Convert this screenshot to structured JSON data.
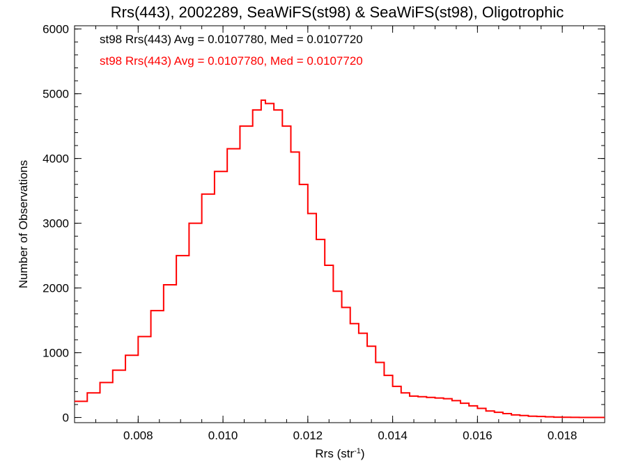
{
  "chart_data": {
    "type": "line",
    "title": "Rrs(443), 2002289, SeaWiFS(st98) & SeaWiFS(st98), Oligotrophic",
    "xlabel": "Rrs (str",
    "xlabel_sup": "-1",
    "xlabel_suffix": ")",
    "ylabel": "Number of Observations",
    "xlim": [
      0.0065,
      0.019
    ],
    "ylim": [
      -80,
      6050
    ],
    "xticks": [
      0.008,
      0.01,
      0.012,
      0.014,
      0.016,
      0.018
    ],
    "xtick_labels": [
      "0.008",
      "0.010",
      "0.012",
      "0.014",
      "0.016",
      "0.018"
    ],
    "yticks": [
      0,
      1000,
      2000,
      3000,
      4000,
      5000,
      6000
    ],
    "ytick_labels": [
      "0",
      "1000",
      "2000",
      "3000",
      "4000",
      "5000",
      "6000"
    ],
    "annotations": [
      {
        "text": "st98 Rrs(443) Avg = 0.0107780, Med = 0.0107720",
        "color": "#000000"
      },
      {
        "text": "st98 Rrs(443) Avg = 0.0107780, Med = 0.0107720",
        "color": "#ff0000"
      }
    ],
    "series": [
      {
        "color": "#ff0000",
        "x": [
          0.0065,
          0.0068,
          0.0071,
          0.0074,
          0.0077,
          0.008,
          0.0083,
          0.0086,
          0.0089,
          0.0092,
          0.0095,
          0.0098,
          0.0101,
          0.0104,
          0.0107,
          0.0109,
          0.011,
          0.0112,
          0.0114,
          0.0116,
          0.0118,
          0.012,
          0.0122,
          0.0124,
          0.0126,
          0.0128,
          0.013,
          0.0132,
          0.0134,
          0.0136,
          0.0138,
          0.014,
          0.0142,
          0.0144,
          0.0146,
          0.0148,
          0.015,
          0.0152,
          0.0154,
          0.0156,
          0.0158,
          0.016,
          0.0162,
          0.0164,
          0.0166,
          0.0168,
          0.017,
          0.0172,
          0.0174,
          0.0176,
          0.0178,
          0.018,
          0.0182,
          0.0184,
          0.0186,
          0.0188,
          0.019
        ],
        "y": [
          250,
          380,
          540,
          730,
          960,
          1250,
          1650,
          2050,
          2500,
          3000,
          3450,
          3800,
          4150,
          4500,
          4750,
          4900,
          4850,
          4750,
          4500,
          4100,
          3600,
          3150,
          2750,
          2350,
          1950,
          1700,
          1450,
          1300,
          1100,
          850,
          650,
          480,
          380,
          330,
          320,
          310,
          300,
          290,
          260,
          220,
          180,
          140,
          100,
          80,
          60,
          40,
          30,
          20,
          15,
          10,
          5,
          3,
          2,
          1,
          0,
          0,
          0
        ]
      }
    ]
  }
}
